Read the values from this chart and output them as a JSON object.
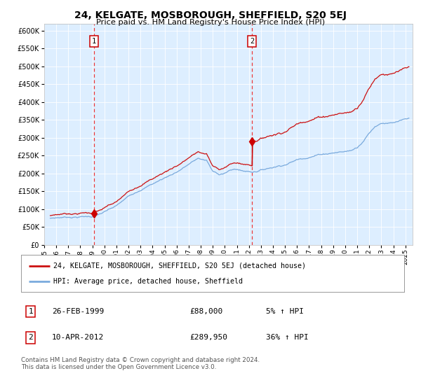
{
  "title": "24, KELGATE, MOSBOROUGH, SHEFFIELD, S20 5EJ",
  "subtitle": "Price paid vs. HM Land Registry's House Price Index (HPI)",
  "sale1_date": "26-FEB-1999",
  "sale1_price": 88000,
  "sale1_year": 1999.14,
  "sale2_date": "10-APR-2012",
  "sale2_price": 289950,
  "sale2_year": 2012.27,
  "legend_line1": "24, KELGATE, MOSBOROUGH, SHEFFIELD, S20 5EJ (detached house)",
  "legend_line2": "HPI: Average price, detached house, Sheffield",
  "footer": "Contains HM Land Registry data © Crown copyright and database right 2024.\nThis data is licensed under the Open Government Licence v3.0.",
  "hpi_color": "#7aaadd",
  "price_color": "#cc1111",
  "marker_color": "#cc0000",
  "vline_color": "#ee3333",
  "bg_color": "#ddeeff",
  "ylim_max": 620000,
  "xlim_start": 1995.4,
  "xlim_end": 2025.6,
  "xtick_years": [
    1995,
    1996,
    1997,
    1998,
    1999,
    2000,
    2001,
    2002,
    2003,
    2004,
    2005,
    2006,
    2007,
    2008,
    2009,
    2010,
    2011,
    2012,
    2013,
    2014,
    2015,
    2016,
    2017,
    2018,
    2019,
    2020,
    2021,
    2022,
    2023,
    2024,
    2025
  ],
  "yticks": [
    0,
    50000,
    100000,
    150000,
    200000,
    250000,
    300000,
    350000,
    400000,
    450000,
    500000,
    550000,
    600000
  ]
}
